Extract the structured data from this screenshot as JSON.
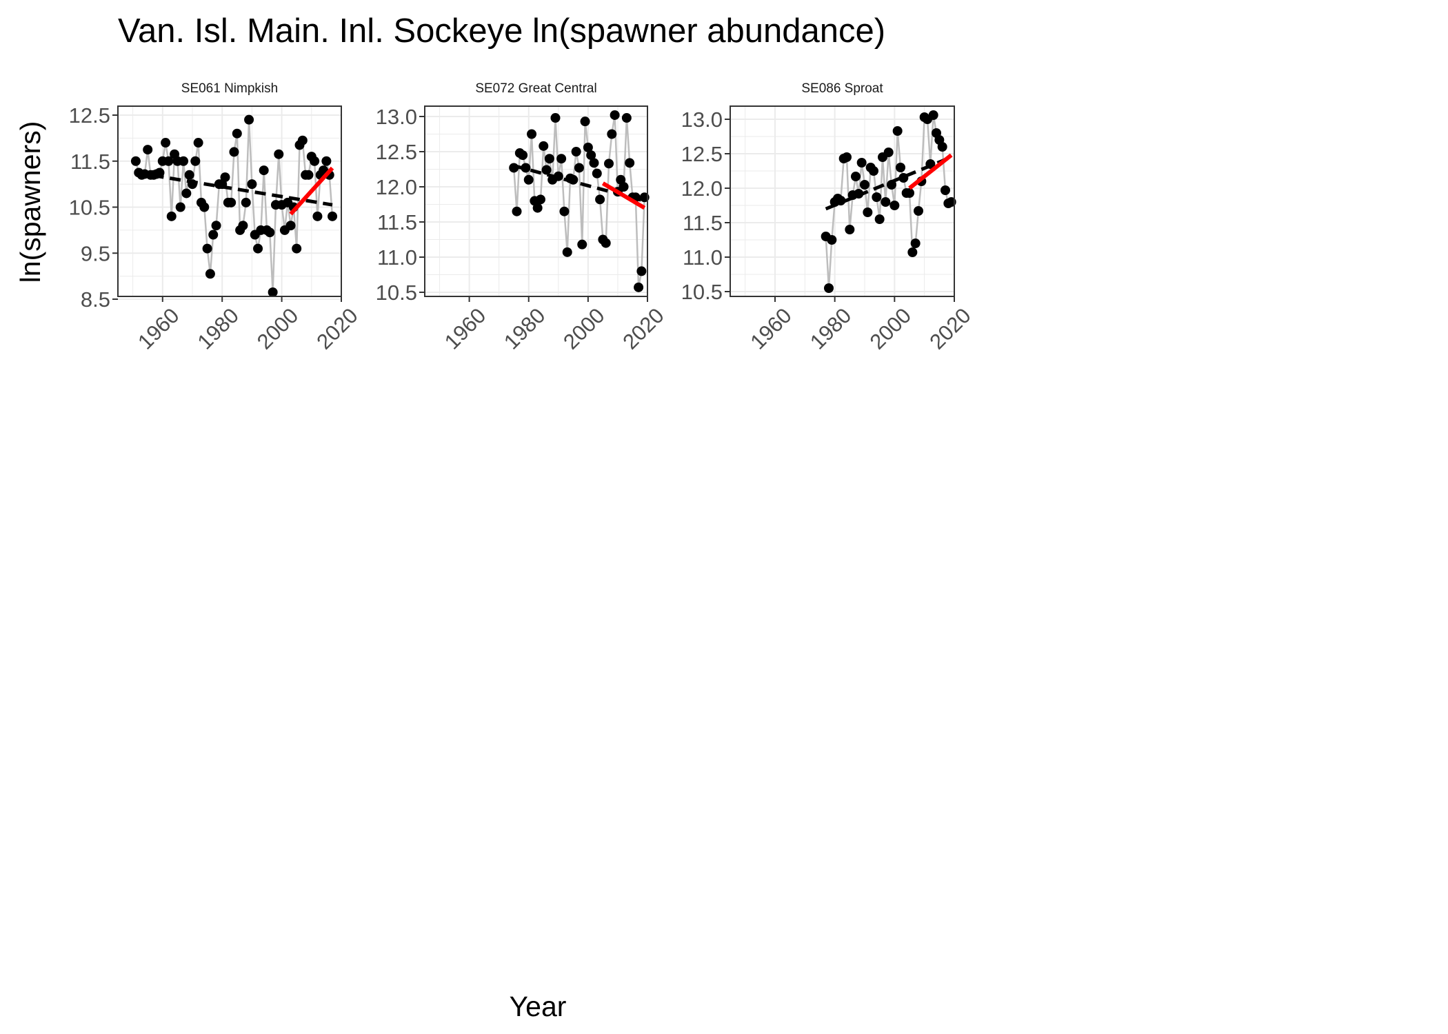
{
  "title": "Van. Isl. Main. Inl. Sockeye ln(spawner abundance)",
  "xlabel": "Year",
  "ylabel": "ln(spawners)",
  "colors": {
    "points": "#000000",
    "connector": "#bdbdbd",
    "long_trend": "#000000",
    "recent_trend": "#ff0000",
    "grid": "#ebebeb",
    "panel_border": "#333333"
  },
  "chart_data": [
    {
      "type": "line",
      "panel": "SE061 Nimpkish",
      "xlim": [
        1945,
        2020
      ],
      "ylim": [
        8.5,
        12.5
      ],
      "x_ticks": [
        1960,
        1980,
        2000,
        2020
      ],
      "y_ticks": [
        8.5,
        9.5,
        10.5,
        11.5,
        12.5
      ],
      "y_tick_labels": [
        "8.5",
        "9.5",
        "10.5",
        "11.5",
        "12.5"
      ],
      "x": [
        1951,
        1952,
        1953,
        1954,
        1955,
        1956,
        1957,
        1958,
        1959,
        1960,
        1961,
        1962,
        1963,
        1964,
        1965,
        1966,
        1967,
        1968,
        1969,
        1970,
        1971,
        1972,
        1973,
        1974,
        1975,
        1976,
        1977,
        1978,
        1979,
        1980,
        1981,
        1982,
        1983,
        1984,
        1985,
        1986,
        1987,
        1988,
        1989,
        1990,
        1991,
        1992,
        1993,
        1994,
        1995,
        1996,
        1997,
        1998,
        1999,
        2000,
        2001,
        2002,
        2003,
        2004,
        2005,
        2006,
        2007,
        2008,
        2009,
        2010,
        2011,
        2012,
        2013,
        2014,
        2015,
        2016,
        2017
      ],
      "values": [
        11.5,
        11.25,
        11.2,
        11.22,
        11.75,
        11.2,
        11.2,
        11.22,
        11.25,
        11.5,
        11.9,
        11.5,
        10.3,
        11.65,
        11.5,
        10.5,
        11.5,
        10.8,
        11.2,
        11.0,
        11.5,
        11.9,
        10.6,
        10.5,
        9.6,
        9.05,
        9.9,
        10.1,
        11.0,
        11.0,
        11.15,
        10.6,
        10.6,
        11.7,
        12.1,
        10.0,
        10.1,
        10.6,
        12.4,
        11.0,
        9.9,
        9.6,
        10.0,
        11.3,
        10.0,
        9.95,
        8.65,
        10.55,
        11.65,
        10.55,
        10.0,
        10.6,
        10.1,
        10.5,
        9.6,
        11.85,
        11.95,
        11.2,
        11.2,
        11.6,
        11.5,
        10.3,
        11.2,
        11.3,
        11.5,
        11.2,
        10.3
      ],
      "long_trend": {
        "x": [
          1951,
          2017
        ],
        "y": [
          11.25,
          10.55
        ]
      },
      "recent_trend": {
        "x": [
          2003,
          2017
        ],
        "y": [
          10.35,
          11.35
        ]
      }
    },
    {
      "type": "line",
      "panel": "SE072 Great Central",
      "xlim": [
        1945,
        2020
      ],
      "ylim": [
        10.5,
        13.0
      ],
      "x_ticks": [
        1960,
        1980,
        2000,
        2020
      ],
      "y_ticks": [
        10.5,
        11.0,
        11.5,
        12.0,
        12.5,
        13.0
      ],
      "y_tick_labels": [
        "10.5",
        "11.0",
        "11.5",
        "12.0",
        "12.5",
        "13.0"
      ],
      "x": [
        1975,
        1976,
        1977,
        1978,
        1979,
        1980,
        1981,
        1982,
        1983,
        1984,
        1985,
        1986,
        1987,
        1988,
        1989,
        1990,
        1991,
        1992,
        1993,
        1994,
        1995,
        1996,
        1997,
        1998,
        1999,
        2000,
        2001,
        2002,
        2003,
        2004,
        2005,
        2006,
        2007,
        2008,
        2009,
        2010,
        2011,
        2012,
        2013,
        2014,
        2015,
        2016,
        2017,
        2018,
        2019
      ],
      "values": [
        12.27,
        11.65,
        12.48,
        12.45,
        12.27,
        12.1,
        12.75,
        11.8,
        11.7,
        11.82,
        12.58,
        12.24,
        12.4,
        12.1,
        12.98,
        12.15,
        12.4,
        11.65,
        11.07,
        12.12,
        12.1,
        12.5,
        12.27,
        11.18,
        12.93,
        12.56,
        12.45,
        12.34,
        12.19,
        11.82,
        11.25,
        11.2,
        12.33,
        12.75,
        13.02,
        11.93,
        12.1,
        12.0,
        12.98,
        12.34,
        11.85,
        11.85,
        10.57,
        10.8,
        11.85
      ],
      "long_trend": {
        "x": [
          1975,
          2019
        ],
        "y": [
          12.3,
          11.8
        ]
      },
      "recent_trend": {
        "x": [
          2005,
          2019
        ],
        "y": [
          12.05,
          11.7
        ]
      }
    },
    {
      "type": "line",
      "panel": "SE086 Sproat",
      "xlim": [
        1945,
        2020
      ],
      "ylim": [
        10.5,
        13.0
      ],
      "x_ticks": [
        1960,
        1980,
        2000,
        2020
      ],
      "y_ticks": [
        10.5,
        11.0,
        11.5,
        12.0,
        12.5,
        13.0
      ],
      "y_tick_labels": [
        "10.5",
        "11.0",
        "11.5",
        "12.0",
        "12.5",
        "13.0"
      ],
      "x": [
        1977,
        1978,
        1979,
        1980,
        1981,
        1982,
        1983,
        1984,
        1985,
        1986,
        1987,
        1988,
        1989,
        1990,
        1991,
        1992,
        1993,
        1994,
        1995,
        1996,
        1997,
        1998,
        1999,
        2000,
        2001,
        2002,
        2003,
        2004,
        2005,
        2006,
        2007,
        2008,
        2009,
        2010,
        2011,
        2012,
        2013,
        2014,
        2015,
        2016,
        2017,
        2018,
        2019
      ],
      "values": [
        11.3,
        10.55,
        11.25,
        11.8,
        11.85,
        11.82,
        12.43,
        12.45,
        11.4,
        11.9,
        12.17,
        11.92,
        12.37,
        12.05,
        11.65,
        12.3,
        12.25,
        11.87,
        11.55,
        12.45,
        11.8,
        12.52,
        12.05,
        11.75,
        12.83,
        12.3,
        12.15,
        11.93,
        11.93,
        11.07,
        11.2,
        11.67,
        12.1,
        13.03,
        13.0,
        12.35,
        13.06,
        12.8,
        12.7,
        12.6,
        11.97,
        11.78,
        11.8
      ],
      "long_trend": {
        "x": [
          1977,
          2019
        ],
        "y": [
          11.7,
          12.45
        ]
      },
      "recent_trend": {
        "x": [
          2005,
          2019
        ],
        "y": [
          12.0,
          12.48
        ]
      }
    }
  ]
}
